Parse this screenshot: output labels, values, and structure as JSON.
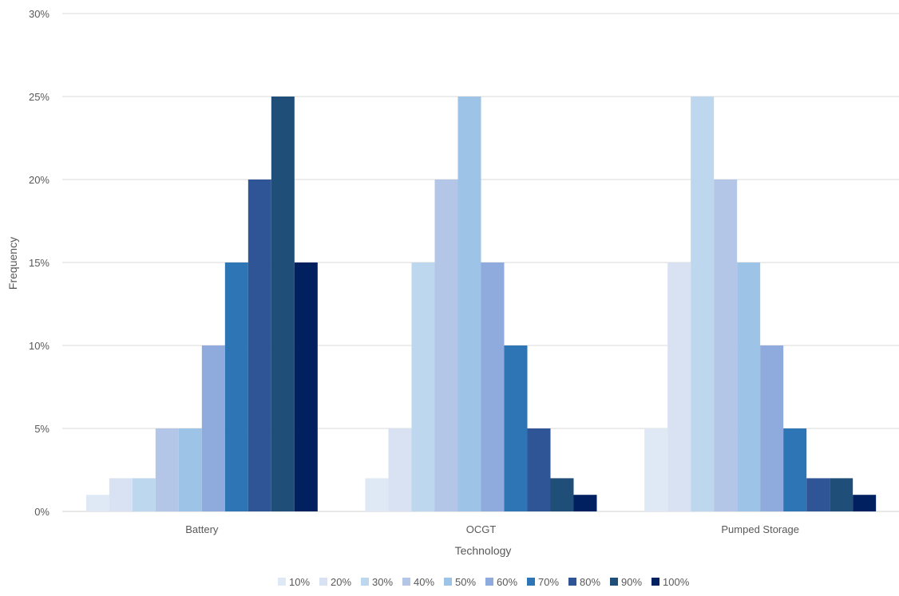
{
  "chart_data": {
    "type": "bar",
    "title": "",
    "xlabel": "Technology",
    "ylabel": "Frequency",
    "ylim": [
      0,
      30
    ],
    "yticks": [
      {
        "value": 0,
        "label": "0%"
      },
      {
        "value": 5,
        "label": "5%"
      },
      {
        "value": 10,
        "label": "10%"
      },
      {
        "value": 15,
        "label": "15%"
      },
      {
        "value": 20,
        "label": "20%"
      },
      {
        "value": 25,
        "label": "25%"
      },
      {
        "value": 30,
        "label": "30%"
      }
    ],
    "grid": true,
    "legend_position": "bottom",
    "categories": [
      "Battery",
      "OCGT",
      "Pumped Storage"
    ],
    "series": [
      {
        "name": "10%",
        "color": "#dee9f5",
        "values": [
          1,
          2,
          5
        ]
      },
      {
        "name": "20%",
        "color": "#d9e2f3",
        "values": [
          2,
          5,
          15
        ]
      },
      {
        "name": "30%",
        "color": "#bdd7ee",
        "values": [
          2,
          15,
          25
        ]
      },
      {
        "name": "40%",
        "color": "#b4c6e7",
        "values": [
          5,
          20,
          20
        ]
      },
      {
        "name": "50%",
        "color": "#9dc3e6",
        "values": [
          5,
          25,
          15
        ]
      },
      {
        "name": "60%",
        "color": "#8faadc",
        "values": [
          10,
          15,
          10
        ]
      },
      {
        "name": "70%",
        "color": "#2e75b6",
        "values": [
          15,
          10,
          5
        ]
      },
      {
        "name": "80%",
        "color": "#2f5597",
        "values": [
          20,
          5,
          2
        ]
      },
      {
        "name": "90%",
        "color": "#1f4e79",
        "values": [
          25,
          2,
          2
        ]
      },
      {
        "name": "100%",
        "color": "#002060",
        "values": [
          15,
          1,
          1
        ]
      }
    ]
  }
}
